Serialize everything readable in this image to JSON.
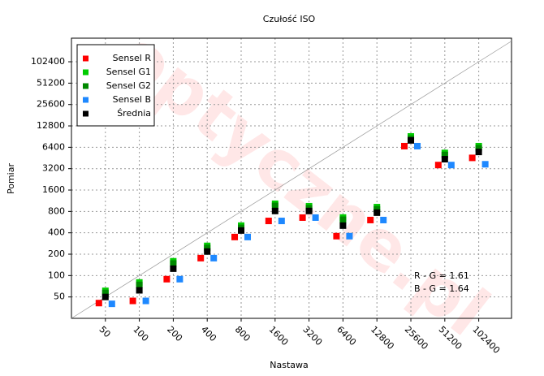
{
  "chart_data": {
    "type": "scatter",
    "title": "Czułość ISO",
    "xlabel": "Nastawa",
    "ylabel": "Pomiar",
    "watermark": "optyczne.pl",
    "annotations": [
      "R - G = 1.61",
      "B - G = 1.64"
    ],
    "log_x": true,
    "log_y": true,
    "grid": true,
    "diagonal": true,
    "legend": "upper left",
    "x": [
      50,
      100,
      200,
      400,
      800,
      1600,
      3200,
      6400,
      12800,
      25600,
      51200,
      102400
    ],
    "series": [
      {
        "name": "Sensel R",
        "color": "#ff0000",
        "values": [
          41,
          44,
          89,
          176,
          349,
          588,
          655,
          359,
          605,
          6640,
          3600,
          4540
        ]
      },
      {
        "name": "Sensel G1",
        "color": "#00cc00",
        "values": [
          61,
          80,
          159,
          262,
          505,
          1026,
          947,
          657,
          920,
          9100,
          5330,
          6640
        ]
      },
      {
        "name": "Sensel G2",
        "color": "#008800",
        "values": [
          60,
          78,
          156,
          258,
          495,
          1010,
          935,
          645,
          905,
          8900,
          5250,
          6540
        ]
      },
      {
        "name": "Sensel B",
        "color": "#1e88ff",
        "values": [
          40,
          44,
          89,
          176,
          349,
          588,
          655,
          359,
          605,
          6640,
          3600,
          3690
        ]
      },
      {
        "name": "Średnia",
        "color": "#000000",
        "values": [
          50,
          62,
          125,
          218,
          431,
          812,
          812,
          505,
          769,
          8000,
          4350,
          5500
        ]
      }
    ],
    "xlim": [
      25,
      200000
    ],
    "ylim": [
      25,
      220000
    ],
    "xticks": [
      50,
      100,
      200,
      400,
      800,
      1600,
      3200,
      6400,
      12800,
      25600,
      51200,
      102400
    ],
    "yticks": [
      50,
      100,
      200,
      400,
      800,
      1600,
      3200,
      6400,
      12800,
      25600,
      51200,
      102400
    ]
  }
}
